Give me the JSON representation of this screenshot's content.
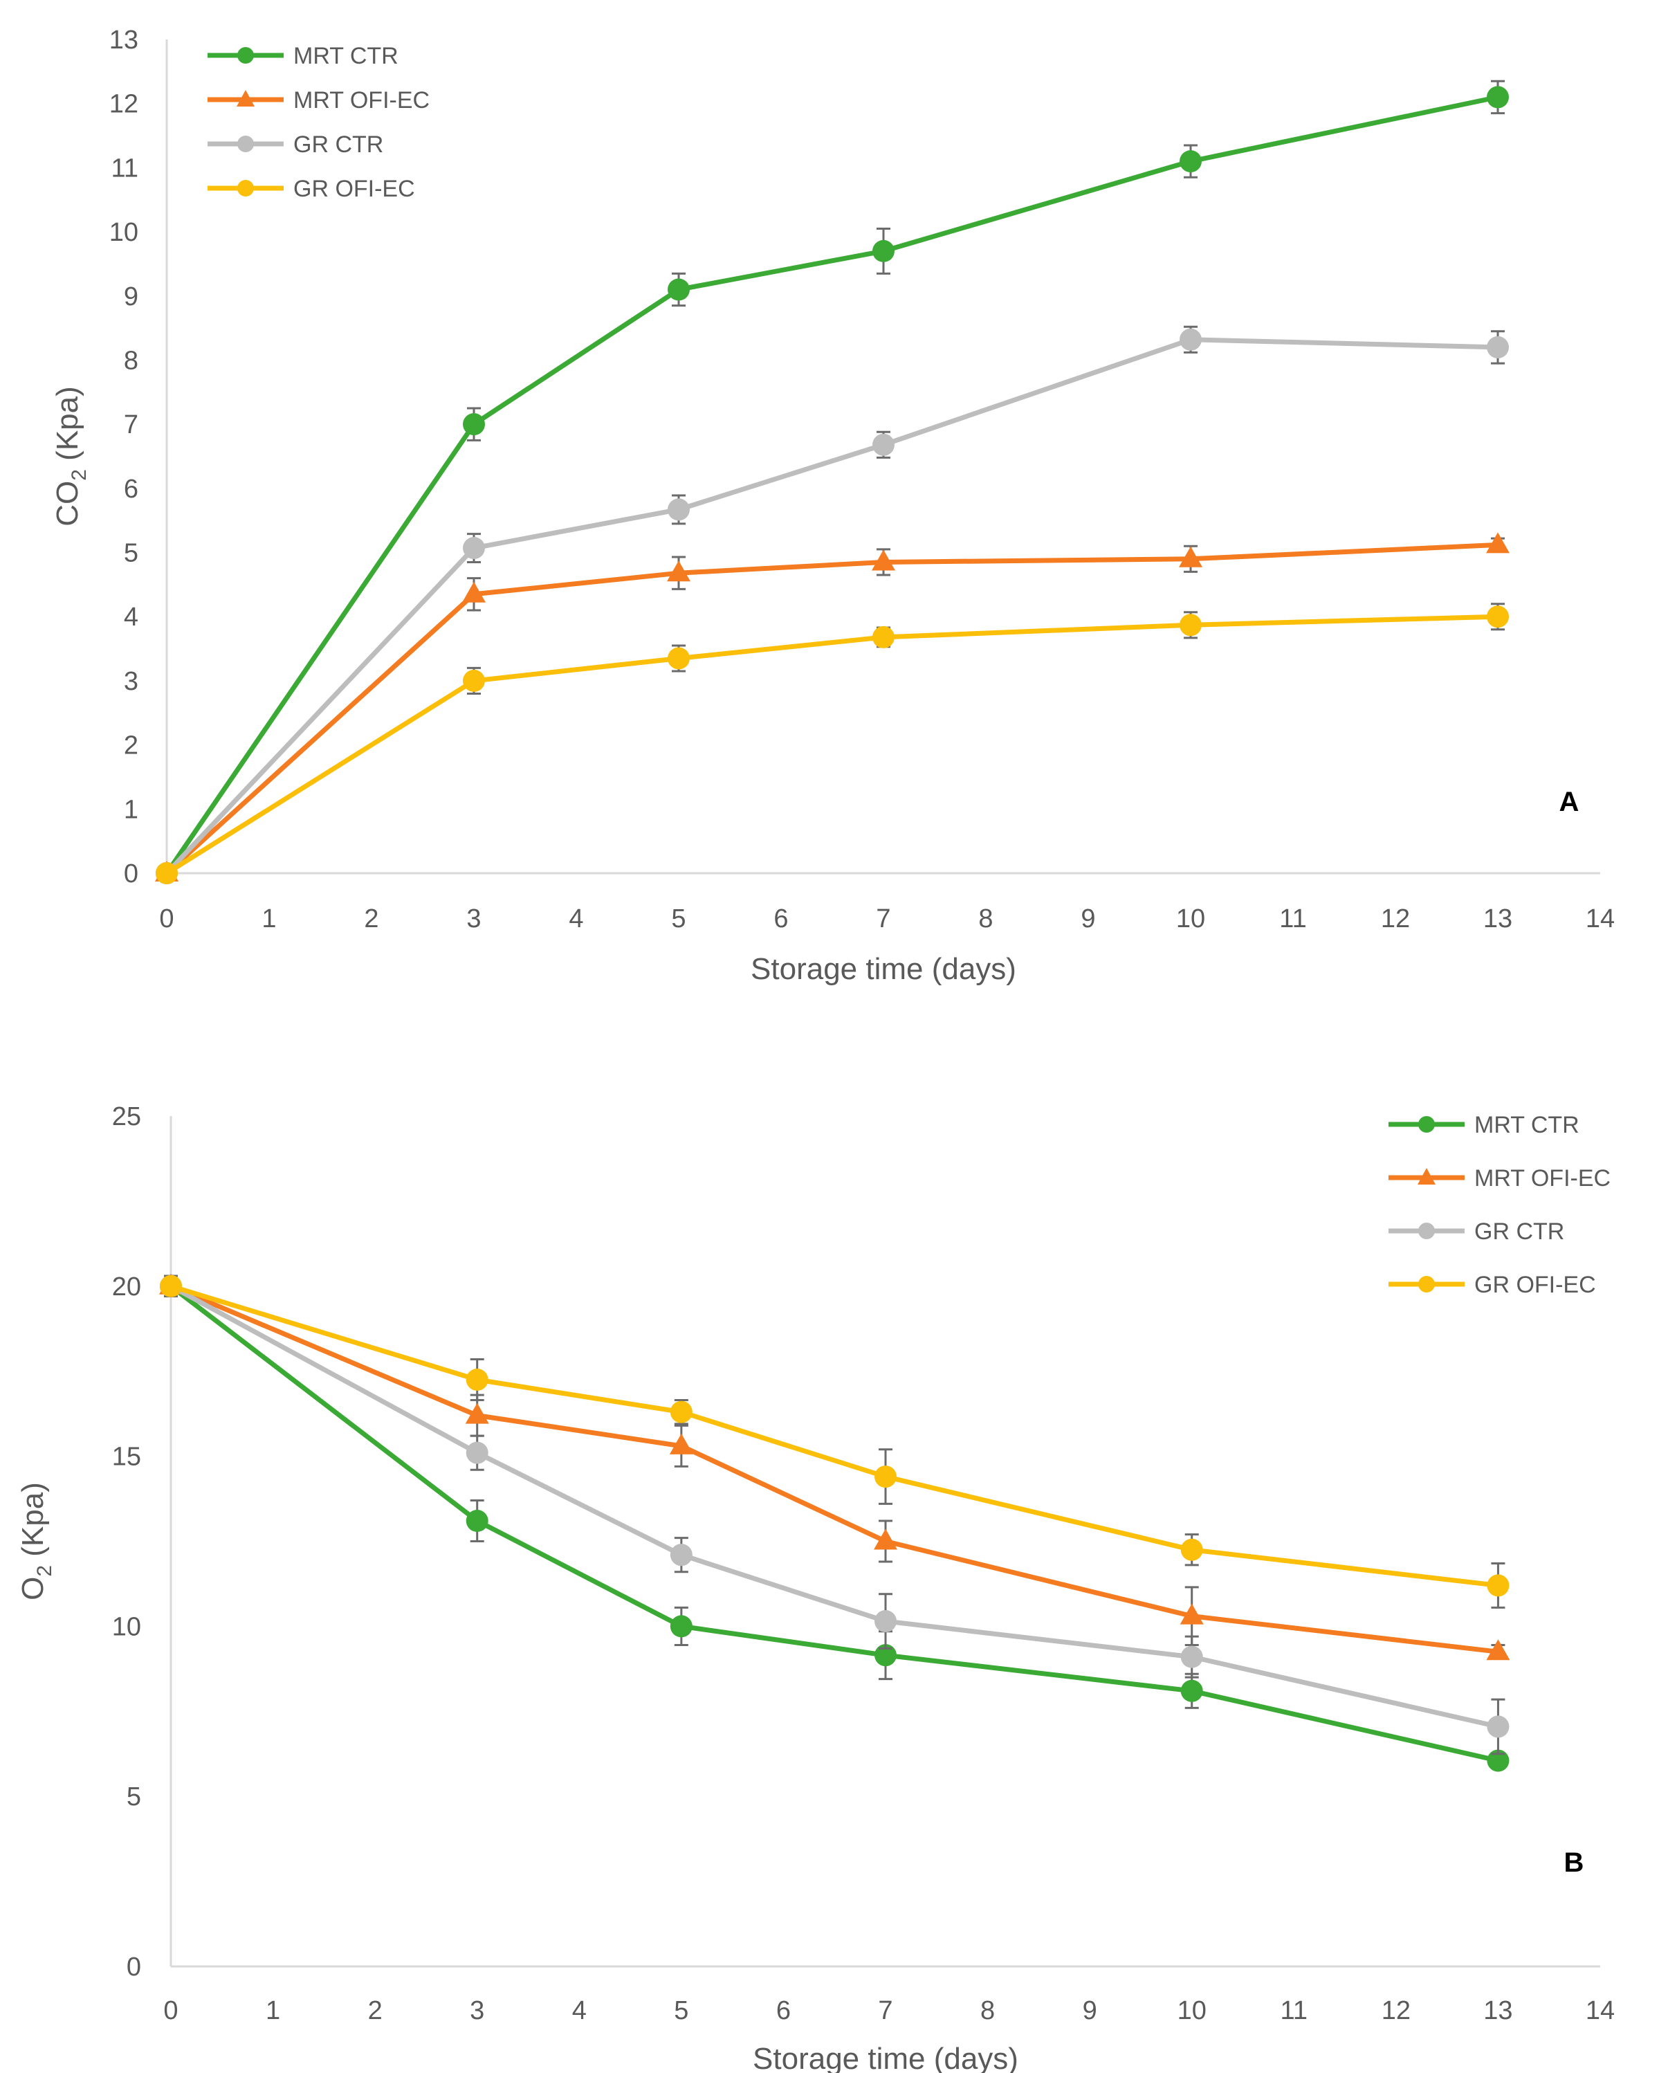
{
  "chart_data": [
    {
      "type": "line",
      "panel_label": "A",
      "ylabel": "CO",
      "ylabel_subscript": "2",
      "ylabel_suffix": " (Kpa)",
      "xlabel": "Storage time (days)",
      "xlim": [
        0,
        14
      ],
      "ylim": [
        0,
        13
      ],
      "x_ticks": [
        0,
        1,
        2,
        3,
        4,
        5,
        6,
        7,
        8,
        9,
        10,
        11,
        12,
        13,
        14
      ],
      "y_ticks": [
        0,
        1,
        2,
        3,
        4,
        5,
        6,
        7,
        8,
        9,
        10,
        11,
        12,
        13
      ],
      "grid": false,
      "legend_position": "top-left",
      "x": [
        0,
        3,
        5,
        7,
        10,
        13
      ],
      "series": [
        {
          "name": "MRT CTR",
          "color": "#3aaa35",
          "marker": "circle",
          "values": [
            0.0,
            7.0,
            9.1,
            9.7,
            11.1,
            12.1
          ],
          "errors": [
            0.05,
            0.25,
            0.25,
            0.35,
            0.25,
            0.25
          ]
        },
        {
          "name": "MRT OFI-EC",
          "color": "#f47b20",
          "marker": "triangle",
          "values": [
            0.0,
            4.35,
            4.68,
            4.85,
            4.9,
            5.12
          ],
          "errors": [
            0.05,
            0.25,
            0.25,
            0.2,
            0.2,
            0.1
          ]
        },
        {
          "name": "GR CTR",
          "color": "#bdbdbd",
          "marker": "circle",
          "values": [
            0.0,
            5.07,
            5.67,
            6.68,
            8.32,
            8.2
          ],
          "errors": [
            0.05,
            0.22,
            0.22,
            0.2,
            0.2,
            0.25
          ]
        },
        {
          "name": "GR OFI-EC",
          "color": "#fbbf09",
          "marker": "circle",
          "values": [
            0.0,
            3.0,
            3.35,
            3.68,
            3.87,
            4.0
          ],
          "errors": [
            0.05,
            0.2,
            0.2,
            0.15,
            0.2,
            0.2
          ]
        }
      ]
    },
    {
      "type": "line",
      "panel_label": "B",
      "ylabel": "O",
      "ylabel_subscript": "2",
      "ylabel_suffix": " (Kpa)",
      "xlabel": "Storage time (days)",
      "xlim": [
        0,
        14
      ],
      "ylim": [
        0,
        25
      ],
      "x_ticks": [
        0,
        1,
        2,
        3,
        4,
        5,
        6,
        7,
        8,
        9,
        10,
        11,
        12,
        13,
        14
      ],
      "y_ticks": [
        0,
        5,
        10,
        15,
        20,
        25
      ],
      "grid": false,
      "legend_position": "top-right",
      "x": [
        0,
        3,
        5,
        7,
        10,
        13
      ],
      "series": [
        {
          "name": "MRT CTR",
          "color": "#3aaa35",
          "marker": "circle",
          "values": [
            20.0,
            13.1,
            10.0,
            9.15,
            8.1,
            6.05
          ],
          "errors": [
            0.3,
            0.6,
            0.55,
            0.7,
            0.5,
            0.2
          ]
        },
        {
          "name": "MRT OFI-EC",
          "color": "#f47b20",
          "marker": "triangle",
          "values": [
            20.0,
            16.2,
            15.3,
            12.5,
            10.3,
            9.25
          ],
          "errors": [
            0.3,
            0.6,
            0.6,
            0.6,
            0.85,
            0.2
          ]
        },
        {
          "name": "GR CTR",
          "color": "#bdbdbd",
          "marker": "circle",
          "values": [
            20.0,
            15.1,
            12.1,
            10.15,
            9.1,
            7.05
          ],
          "errors": [
            0.3,
            0.5,
            0.5,
            0.8,
            0.6,
            0.8
          ]
        },
        {
          "name": "GR OFI-EC",
          "color": "#fbbf09",
          "marker": "circle",
          "values": [
            20.0,
            17.25,
            16.3,
            14.4,
            12.25,
            11.2
          ],
          "errors": [
            0.3,
            0.6,
            0.35,
            0.8,
            0.45,
            0.65
          ]
        }
      ]
    }
  ]
}
